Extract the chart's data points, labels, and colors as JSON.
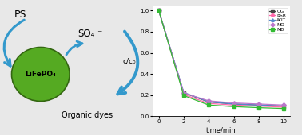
{
  "time": [
    0,
    2,
    4,
    6,
    8,
    10
  ],
  "OG": [
    1.0,
    0.22,
    0.135,
    0.115,
    0.105,
    0.095
  ],
  "RhB": [
    1.0,
    0.205,
    0.12,
    0.105,
    0.095,
    0.085
  ],
  "AOT": [
    1.0,
    0.225,
    0.135,
    0.115,
    0.105,
    0.095
  ],
  "MO": [
    1.0,
    0.22,
    0.145,
    0.125,
    0.115,
    0.105
  ],
  "MB": [
    1.0,
    0.195,
    0.105,
    0.09,
    0.08,
    0.072
  ],
  "colors": {
    "OG": "#444444",
    "RhB": "#ff66aa",
    "AOT": "#5588cc",
    "MO": "#bb77cc",
    "MB": "#33bb33"
  },
  "markers": {
    "OG": "s",
    "RhB": "o",
    "AOT": "^",
    "MO": "D",
    "MB": "s"
  },
  "ylim": [
    0.0,
    1.05
  ],
  "xlim": [
    -0.5,
    10.5
  ],
  "xlabel": "time/min",
  "ylabel": "c/c₀",
  "arrow_color": "#3399cc",
  "circle_color": "#55aa22",
  "circle_edge": "#336611",
  "circle_text": "LiFePO₄",
  "ps_text": "PS",
  "so4_text": "SO₄·⁻",
  "organic_text": "Organic dyes",
  "background": "#e8e8e8"
}
